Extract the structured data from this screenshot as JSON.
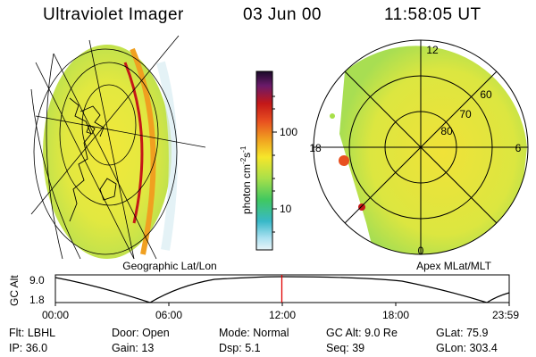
{
  "header": {
    "title": "Ultraviolet Imager",
    "date": "03 Jun 00",
    "time": "11:58:05 UT"
  },
  "geo_map": {
    "label": "Geographic Lat/Lon"
  },
  "polar_map": {
    "label": "Apex MLat/MLT",
    "lat_labels": [
      "60",
      "70",
      "80"
    ],
    "mlt_labels": {
      "top": "12",
      "left": "18",
      "right": "6",
      "bottom": "0"
    }
  },
  "colorbar": {
    "unit_label": "photon cm",
    "unit_exp1": "-2",
    "unit_mid": "s",
    "unit_exp2": "-1",
    "ticks": [
      "100",
      "10"
    ],
    "scale": "log",
    "colors": [
      "#1a0a2a",
      "#6a1a6a",
      "#c41818",
      "#e85020",
      "#f0a020",
      "#f6e62a",
      "#a8e04a",
      "#40c860",
      "#38b8c8",
      "#a8e0f0",
      "#e8f4f8"
    ]
  },
  "timeline": {
    "ylabel": "GC Alt",
    "y_ticks": [
      "9.0",
      "1.8"
    ],
    "x_ticks": [
      "00:00",
      "06:00",
      "12:00",
      "18:00",
      "23:59"
    ],
    "marker_time": "11:58",
    "marker_color": "#e00000"
  },
  "status": {
    "row1": [
      {
        "key": "Flt:",
        "value": "LBHL"
      },
      {
        "key": "Door:",
        "value": "Open"
      },
      {
        "key": "Mode:",
        "value": "Normal"
      },
      {
        "key": "GC Alt:",
        "value": "9.0 Re"
      },
      {
        "key": "GLat:",
        "value": "75.9"
      }
    ],
    "row2": [
      {
        "key": "IP:",
        "value": "36.0"
      },
      {
        "key": "Gain:",
        "value": "13"
      },
      {
        "key": "Dsp:",
        "value": "5.1"
      },
      {
        "key": "Seq:",
        "value": "39"
      },
      {
        "key": "GLon:",
        "value": "303.4"
      }
    ]
  }
}
